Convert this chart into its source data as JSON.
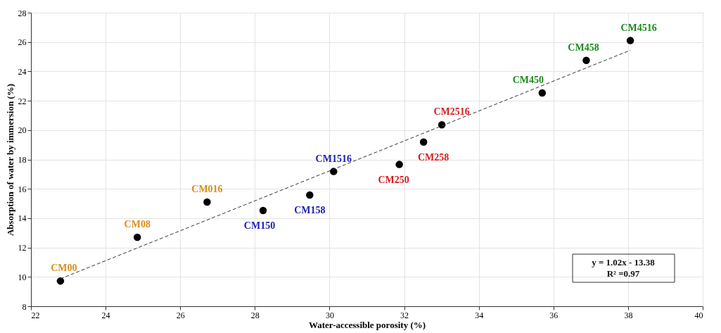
{
  "chart_data": {
    "type": "scatter",
    "xlabel": "Water-accessible porosity (%)",
    "ylabel": "Absorption of water by immersion (%)",
    "xlim": [
      22,
      40
    ],
    "xticks": [
      22,
      24,
      26,
      28,
      30,
      32,
      34,
      36,
      38,
      40
    ],
    "ylim": [
      8,
      28
    ],
    "yticks": [
      8,
      10,
      12,
      14,
      16,
      18,
      20,
      22,
      24,
      26,
      28
    ],
    "grid": true,
    "marker": "circle",
    "series": [
      {
        "color": "#000000",
        "x": [
          22.79,
          24.85,
          26.72
        ],
        "values": [
          9.72,
          12.7,
          15.1
        ],
        "value_labels": [
          "CM00",
          "CM08",
          "CM016"
        ]
      },
      {
        "color": "#000000",
        "x": [
          28.22,
          29.47,
          30.11
        ],
        "values": [
          14.52,
          15.58,
          17.18
        ],
        "value_labels": [
          "CM150",
          "CM158",
          "CM1516"
        ]
      },
      {
        "color": "#000000",
        "x": [
          31.87,
          32.52,
          33.01
        ],
        "values": [
          17.66,
          19.19,
          20.36
        ],
        "value_labels": [
          "CM250",
          "CM258",
          "CM2516"
        ]
      },
      {
        "color": "#000000",
        "x": [
          35.7,
          36.88,
          38.06
        ],
        "values": [
          22.53,
          24.75,
          26.1
        ],
        "value_labels": [
          "CM450",
          "CM458",
          "CM4516"
        ]
      },
      {
        "type": "line",
        "color": "#333333",
        "line_style": "dashed",
        "marker": "none",
        "x": [
          22.79,
          38.06
        ],
        "values": [
          9.87,
          25.44
        ]
      }
    ],
    "annotations": [
      "y = 1.02x - 13.38",
      "R² =0.97"
    ]
  }
}
